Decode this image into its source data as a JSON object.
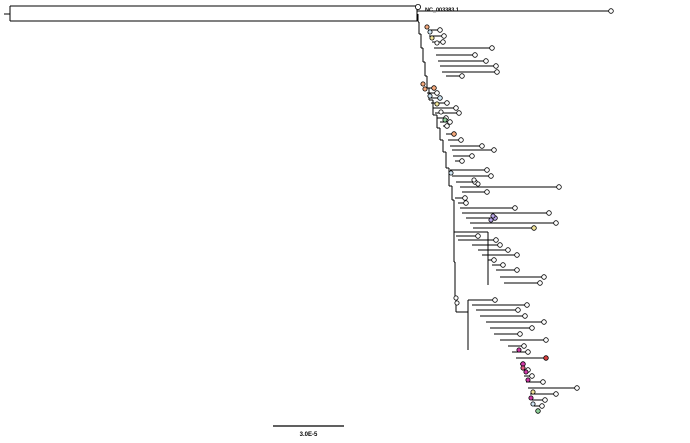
{
  "tree": {
    "root_label": "NC_003383.1",
    "scale_label": "3.0E-5",
    "node_palette": [
      "#ffffff",
      "#cfe6f5",
      "#f2e59a",
      "#f6a97c",
      "#b9a6e8",
      "#e35a84",
      "#d13aa8",
      "#8fd19a",
      "#d94040",
      "#f0f0c8"
    ]
  }
}
